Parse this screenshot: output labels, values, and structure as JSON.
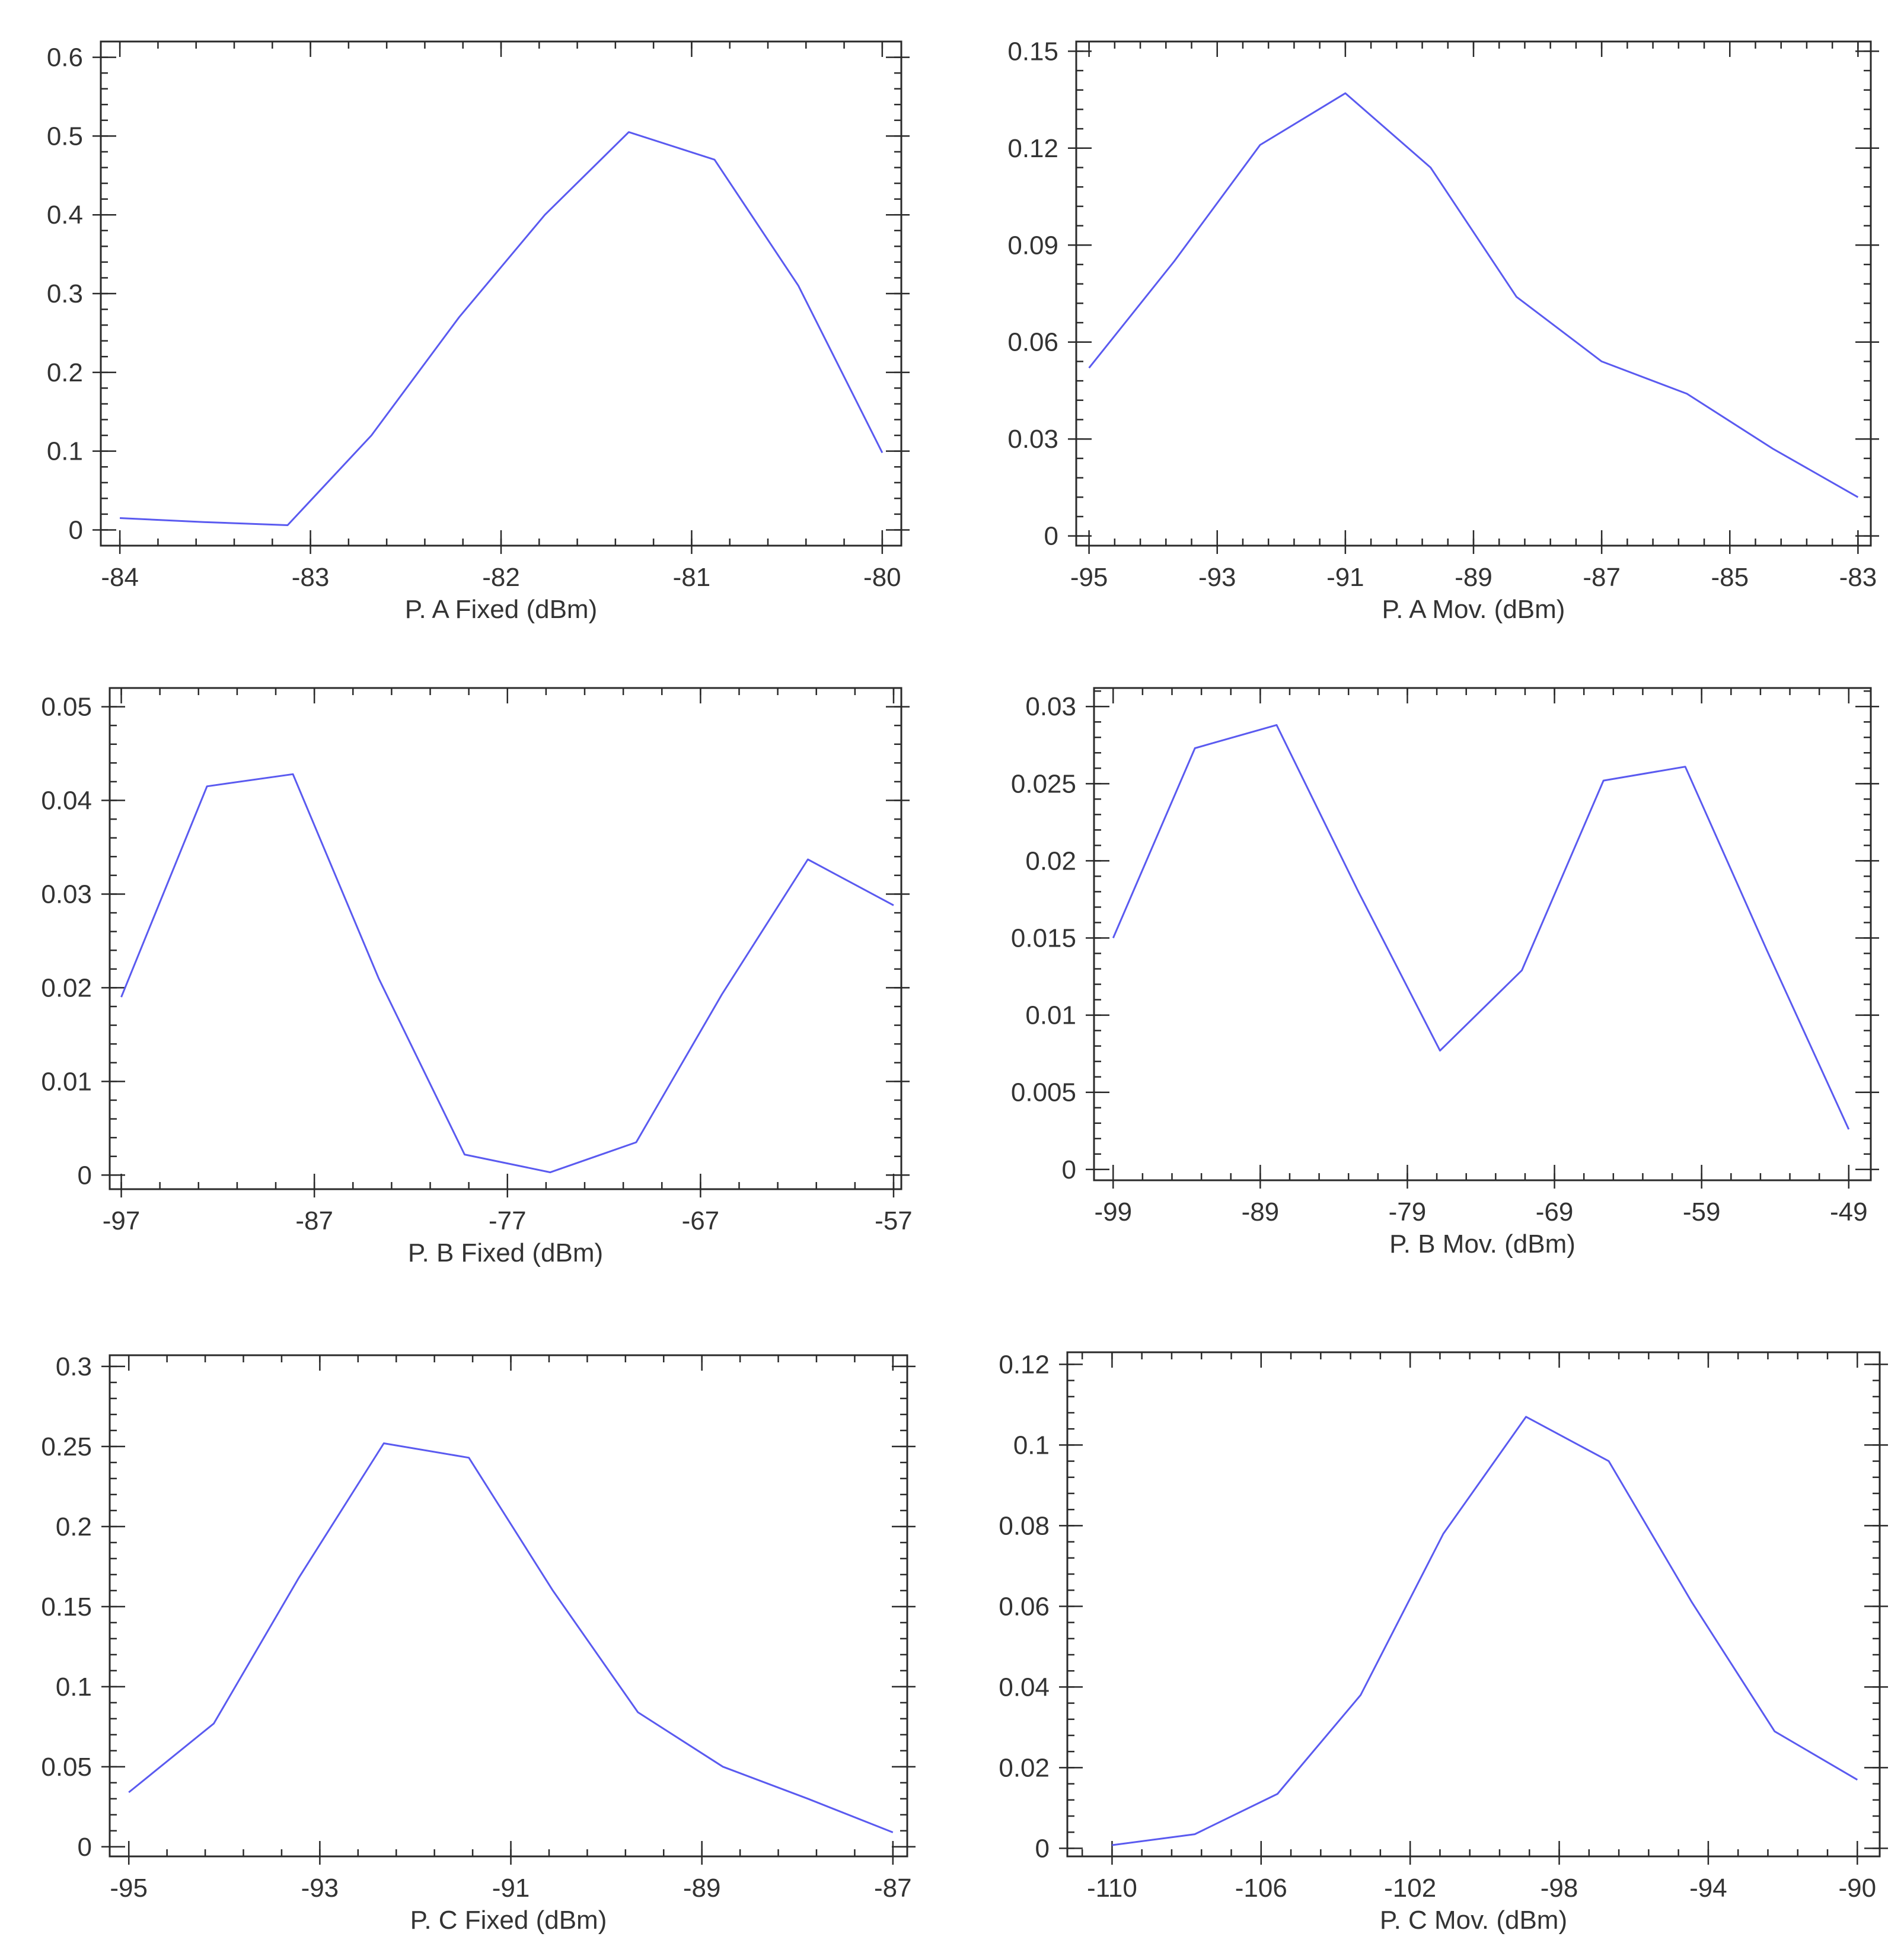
{
  "chart_data": [
    {
      "type": "line",
      "xlabel": "P. A Fixed (dBm)",
      "ylabel": "",
      "xlim": [
        -84.1,
        -79.9
      ],
      "ylim": [
        -0.02,
        0.62
      ],
      "xticks": [
        -84,
        -83,
        -82,
        -81,
        -80
      ],
      "xtick_labels": [
        "-84",
        "-83",
        "-82",
        "-81",
        "-80"
      ],
      "yticks": [
        0,
        0.1,
        0.2,
        0.3,
        0.4,
        0.5,
        0.6
      ],
      "ytick_labels": [
        "0",
        "0.1",
        "0.2",
        "0.3",
        "0.4",
        "0.5",
        "0.6"
      ],
      "x": [
        -84,
        -83.56,
        -83.12,
        -82.68,
        -82.22,
        -81.77,
        -81.33,
        -80.88,
        -80.44,
        -80
      ],
      "y": [
        0.015,
        0.01,
        0.006,
        0.12,
        0.27,
        0.4,
        0.505,
        0.47,
        0.31,
        0.098
      ],
      "color": "#5a5af0"
    },
    {
      "type": "line",
      "xlabel": "P. A Mov. (dBm)",
      "ylabel": "",
      "xlim": [
        -95.2,
        -82.8
      ],
      "ylim": [
        -0.003,
        0.153
      ],
      "xticks": [
        -95,
        -93,
        -91,
        -89,
        -87,
        -85,
        -83
      ],
      "xtick_labels": [
        "-95",
        "-93",
        "-91",
        "-89",
        "-87",
        "-85",
        "-83"
      ],
      "yticks": [
        0,
        0.03,
        0.06,
        0.09,
        0.12,
        0.15
      ],
      "ytick_labels": [
        "0",
        "0.03",
        "0.06",
        "0.09",
        "0.12",
        "0.15"
      ],
      "x": [
        -95,
        -93.67,
        -92.33,
        -91,
        -89.67,
        -88.33,
        -87,
        -85.67,
        -84.33,
        -83
      ],
      "y": [
        0.052,
        0.085,
        0.121,
        0.137,
        0.114,
        0.074,
        0.054,
        0.044,
        0.027,
        0.012
      ],
      "color": "#5a5af0"
    },
    {
      "type": "line",
      "xlabel": "P. B Fixed (dBm)",
      "ylabel": "",
      "xlim": [
        -97.6,
        -56.6
      ],
      "ylim": [
        -0.0015,
        0.052
      ],
      "xticks": [
        -97,
        -87,
        -77,
        -67,
        -57
      ],
      "xtick_labels": [
        "-97",
        "-87",
        "-77",
        "-67",
        "-57"
      ],
      "yticks": [
        0,
        0.01,
        0.02,
        0.03,
        0.04,
        0.05
      ],
      "ytick_labels": [
        "0",
        "0.01",
        "0.02",
        "0.03",
        "0.04",
        "0.05"
      ],
      "x": [
        -97,
        -92.56,
        -88.11,
        -83.67,
        -79.22,
        -74.78,
        -70.33,
        -65.89,
        -61.44,
        -57
      ],
      "y": [
        0.019,
        0.0415,
        0.0428,
        0.021,
        0.0022,
        0.0003,
        0.0035,
        0.0193,
        0.0337,
        0.0288
      ],
      "color": "#5a5af0"
    },
    {
      "type": "line",
      "xlabel": "P. B Mov. (dBm)",
      "ylabel": "",
      "xlim": [
        -100.3,
        -47.5
      ],
      "ylim": [
        -0.0007,
        0.0312
      ],
      "xticks": [
        -99,
        -89,
        -79,
        -69,
        -59,
        -49
      ],
      "xtick_labels": [
        "-99",
        "-89",
        "-79",
        "-69",
        "-59",
        "-49"
      ],
      "yticks": [
        0,
        0.005,
        0.01,
        0.015,
        0.02,
        0.025,
        0.03
      ],
      "ytick_labels": [
        "0",
        "0.005",
        "0.01",
        "0.015",
        "0.02",
        "0.025",
        "0.03"
      ],
      "x": [
        -99,
        -93.44,
        -87.89,
        -82.33,
        -76.78,
        -71.22,
        -65.67,
        -60.11,
        -54.56,
        -49
      ],
      "y": [
        0.015,
        0.0273,
        0.0288,
        0.018,
        0.0077,
        0.0129,
        0.0252,
        0.0261,
        0.0142,
        0.0026
      ],
      "color": "#5a5af0"
    },
    {
      "type": "line",
      "xlabel": "P. C Fixed (dBm)",
      "ylabel": "",
      "xlim": [
        -95.2,
        -86.85
      ],
      "ylim": [
        -0.006,
        0.307
      ],
      "xticks": [
        -95,
        -93,
        -91,
        -89,
        -87
      ],
      "xtick_labels": [
        "-95",
        "-93",
        "-91",
        "-89",
        "-87"
      ],
      "yticks": [
        0,
        0.05,
        0.1,
        0.15,
        0.2,
        0.25,
        0.3
      ],
      "ytick_labels": [
        "0",
        "0.05",
        "0.1",
        "0.15",
        "0.2",
        "0.25",
        "0.3"
      ],
      "x": [
        -95,
        -94.11,
        -93.22,
        -92.33,
        -91.44,
        -90.56,
        -89.67,
        -88.78,
        -87.89,
        -87
      ],
      "y": [
        0.034,
        0.077,
        0.168,
        0.252,
        0.243,
        0.16,
        0.084,
        0.05,
        0.03,
        0.009
      ],
      "color": "#5a5af0"
    },
    {
      "type": "line",
      "xlabel": "P. C Mov. (dBm)",
      "ylabel": "",
      "xlim": [
        -111.2,
        -89.4
      ],
      "ylim": [
        -0.002,
        0.123
      ],
      "xticks": [
        -110,
        -106,
        -102,
        -98,
        -94,
        -90
      ],
      "xtick_labels": [
        "-110",
        "-106",
        "-102",
        "-98",
        "-94",
        "-90"
      ],
      "yticks": [
        0,
        0.02,
        0.04,
        0.06,
        0.08,
        0.1,
        0.12
      ],
      "ytick_labels": [
        "0",
        "0.02",
        "0.04",
        "0.06",
        "0.08",
        "0.1",
        "0.12"
      ],
      "x": [
        -110,
        -107.78,
        -105.56,
        -103.33,
        -101.11,
        -98.89,
        -96.67,
        -94.44,
        -92.22,
        -90
      ],
      "y": [
        0.0008,
        0.0035,
        0.0135,
        0.038,
        0.078,
        0.107,
        0.096,
        0.061,
        0.029,
        0.017
      ],
      "color": "#5a5af0"
    }
  ]
}
